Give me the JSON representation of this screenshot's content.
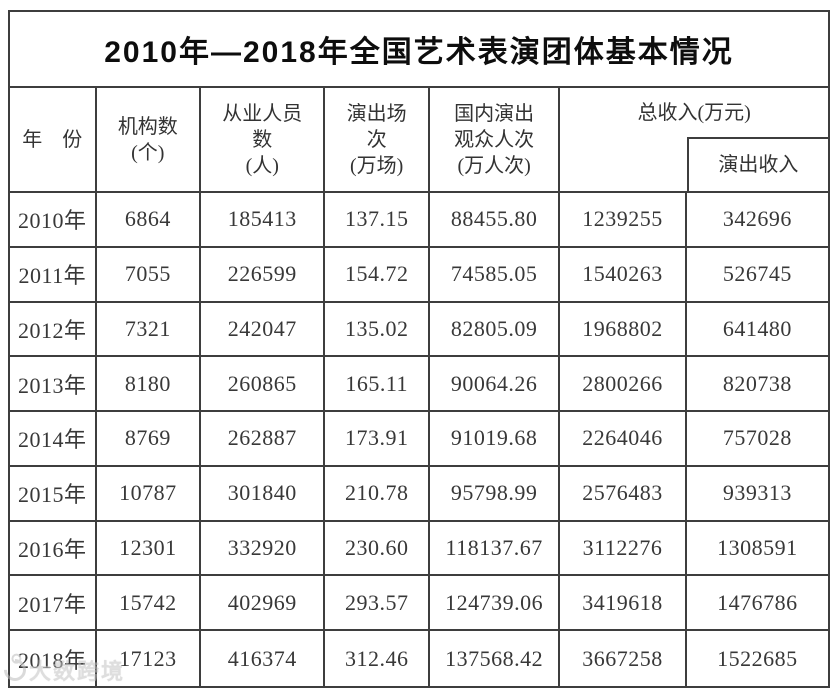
{
  "title": "2010年—2018年全国艺术表演团体基本情况",
  "watermark": {
    "text": "大数跨境"
  },
  "colors": {
    "border": "#3e3e3e",
    "title_text": "#0d0d0d",
    "body_text": "#383838",
    "watermark": "#c4c4c4",
    "background": "#ffffff"
  },
  "table": {
    "headers": {
      "year": "年　份",
      "org_count": "机构数\n(个)",
      "employees": "从业人员\n数\n(人)",
      "performances": "演出场\n次\n(万场)",
      "domestic_audience": "国内演出\n观众人次\n(万人次)",
      "total_income": "总收入(万元)",
      "performance_income": "演出收入"
    },
    "rows": [
      [
        "2010年",
        "6864",
        "185413",
        "137.15",
        "88455.80",
        "1239255",
        "342696"
      ],
      [
        "2011年",
        "7055",
        "226599",
        "154.72",
        "74585.05",
        "1540263",
        "526745"
      ],
      [
        "2012年",
        "7321",
        "242047",
        "135.02",
        "82805.09",
        "1968802",
        "641480"
      ],
      [
        "2013年",
        "8180",
        "260865",
        "165.11",
        "90064.26",
        "2800266",
        "820738"
      ],
      [
        "2014年",
        "8769",
        "262887",
        "173.91",
        "91019.68",
        "2264046",
        "757028"
      ],
      [
        "2015年",
        "10787",
        "301840",
        "210.78",
        "95798.99",
        "2576483",
        "939313"
      ],
      [
        "2016年",
        "12301",
        "332920",
        "230.60",
        "118137.67",
        "3112276",
        "1308591"
      ],
      [
        "2017年",
        "15742",
        "402969",
        "293.57",
        "124739.06",
        "3419618",
        "1476786"
      ],
      [
        "2018年",
        "17123",
        "416374",
        "312.46",
        "137568.42",
        "3667258",
        "1522685"
      ]
    ]
  }
}
